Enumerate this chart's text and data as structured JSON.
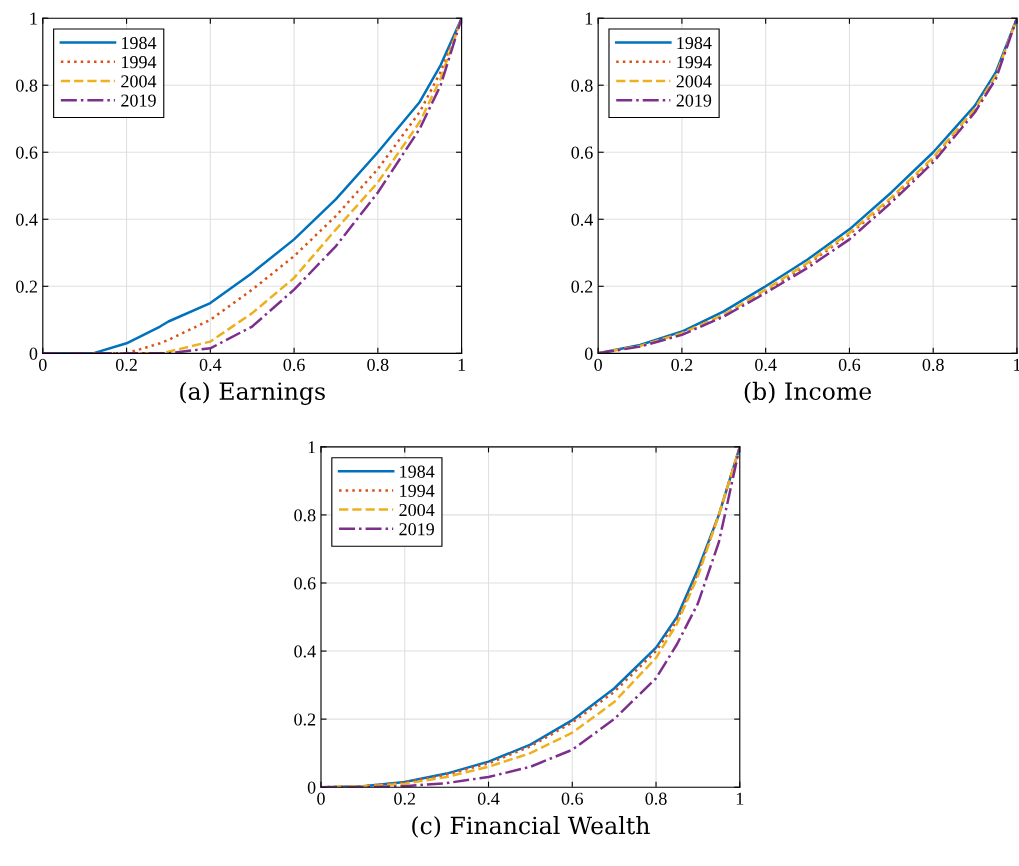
{
  "chart_data": [
    {
      "type": "line",
      "title": "(a) Earnings",
      "xlim": [
        0,
        1
      ],
      "ylim": [
        0,
        1
      ],
      "xticks": [
        0,
        0.2,
        0.4,
        0.6,
        0.8,
        1
      ],
      "yticks": [
        0,
        0.2,
        0.4,
        0.6,
        0.8,
        1
      ],
      "grid": true,
      "legend": "top left",
      "x": [
        0,
        0.1,
        0.12,
        0.2,
        0.28,
        0.3,
        0.4,
        0.5,
        0.6,
        0.7,
        0.8,
        0.9,
        0.95,
        1
      ],
      "series": [
        {
          "name": "1984",
          "color": "#0072bd",
          "line_style": "solid",
          "values": [
            0,
            0,
            0,
            0.03,
            0.08,
            0.095,
            0.15,
            0.24,
            0.34,
            0.46,
            0.6,
            0.75,
            0.86,
            1
          ]
        },
        {
          "name": "1994",
          "color": "#d95319",
          "line_style": "dotted",
          "values": [
            null,
            null,
            0,
            0,
            0.03,
            0.04,
            0.1,
            0.19,
            0.29,
            0.41,
            0.55,
            0.72,
            0.84,
            1
          ]
        },
        {
          "name": "2004",
          "color": "#edb120",
          "line_style": "dashed",
          "values": [
            null,
            null,
            null,
            0,
            0,
            0.005,
            0.035,
            0.12,
            0.225,
            0.37,
            0.51,
            0.69,
            0.82,
            1
          ]
        },
        {
          "name": "2019",
          "color": "#7e2f8e",
          "line_style": "dashdot",
          "values": [
            0,
            0,
            0,
            0,
            0,
            0,
            0.015,
            0.08,
            0.19,
            0.32,
            0.48,
            0.67,
            0.8,
            1
          ]
        }
      ]
    },
    {
      "type": "line",
      "title": "(b) Income",
      "xlim": [
        0,
        1
      ],
      "ylim": [
        0,
        1
      ],
      "xticks": [
        0,
        0.2,
        0.4,
        0.6,
        0.8,
        1
      ],
      "yticks": [
        0,
        0.2,
        0.4,
        0.6,
        0.8,
        1
      ],
      "grid": true,
      "legend": "top left",
      "x": [
        0,
        0.1,
        0.2,
        0.3,
        0.4,
        0.5,
        0.6,
        0.7,
        0.8,
        0.9,
        0.95,
        1
      ],
      "series": [
        {
          "name": "1984",
          "color": "#0072bd",
          "line_style": "solid",
          "values": [
            0,
            0.025,
            0.065,
            0.125,
            0.2,
            0.28,
            0.37,
            0.48,
            0.6,
            0.74,
            0.84,
            1
          ]
        },
        {
          "name": "1994",
          "color": "#d95319",
          "line_style": "dotted",
          "values": [
            0,
            0.022,
            0.06,
            0.115,
            0.185,
            0.265,
            0.355,
            0.46,
            0.58,
            0.73,
            0.83,
            1
          ]
        },
        {
          "name": "2004",
          "color": "#edb120",
          "line_style": "dashed",
          "values": [
            0,
            0.022,
            0.06,
            0.115,
            0.19,
            0.27,
            0.36,
            0.465,
            0.585,
            0.73,
            0.83,
            1
          ]
        },
        {
          "name": "2019",
          "color": "#7e2f8e",
          "line_style": "dashdot",
          "values": [
            0,
            0.02,
            0.055,
            0.11,
            0.18,
            0.255,
            0.34,
            0.45,
            0.57,
            0.72,
            0.82,
            1
          ]
        }
      ]
    },
    {
      "type": "line",
      "title": "(c) Financial Wealth",
      "xlim": [
        0,
        1
      ],
      "ylim": [
        0,
        1
      ],
      "xticks": [
        0,
        0.2,
        0.4,
        0.6,
        0.8,
        1
      ],
      "yticks": [
        0,
        0.2,
        0.4,
        0.6,
        0.8,
        1
      ],
      "grid": true,
      "legend": "top left",
      "x": [
        0,
        0.1,
        0.2,
        0.3,
        0.4,
        0.5,
        0.6,
        0.7,
        0.8,
        0.85,
        0.9,
        0.95,
        1
      ],
      "series": [
        {
          "name": "1984",
          "color": "#0072bd",
          "line_style": "solid",
          "values": [
            0,
            0.003,
            0.015,
            0.04,
            0.075,
            0.125,
            0.197,
            0.29,
            0.41,
            0.5,
            0.64,
            0.8,
            1
          ]
        },
        {
          "name": "1994",
          "color": "#d95319",
          "line_style": "dotted",
          "values": [
            0,
            0.003,
            0.014,
            0.037,
            0.07,
            0.12,
            0.19,
            0.28,
            0.4,
            0.49,
            0.63,
            0.8,
            1
          ]
        },
        {
          "name": "2004",
          "color": "#edb120",
          "line_style": "dashed",
          "values": [
            0,
            0.002,
            0.01,
            0.03,
            0.06,
            0.1,
            0.16,
            0.25,
            0.38,
            0.48,
            0.62,
            0.8,
            1
          ]
        },
        {
          "name": "2019",
          "color": "#7e2f8e",
          "line_style": "dashdot",
          "values": [
            0,
            0,
            0.003,
            0.012,
            0.03,
            0.06,
            0.11,
            0.2,
            0.32,
            0.42,
            0.54,
            0.72,
            1
          ]
        }
      ]
    }
  ]
}
